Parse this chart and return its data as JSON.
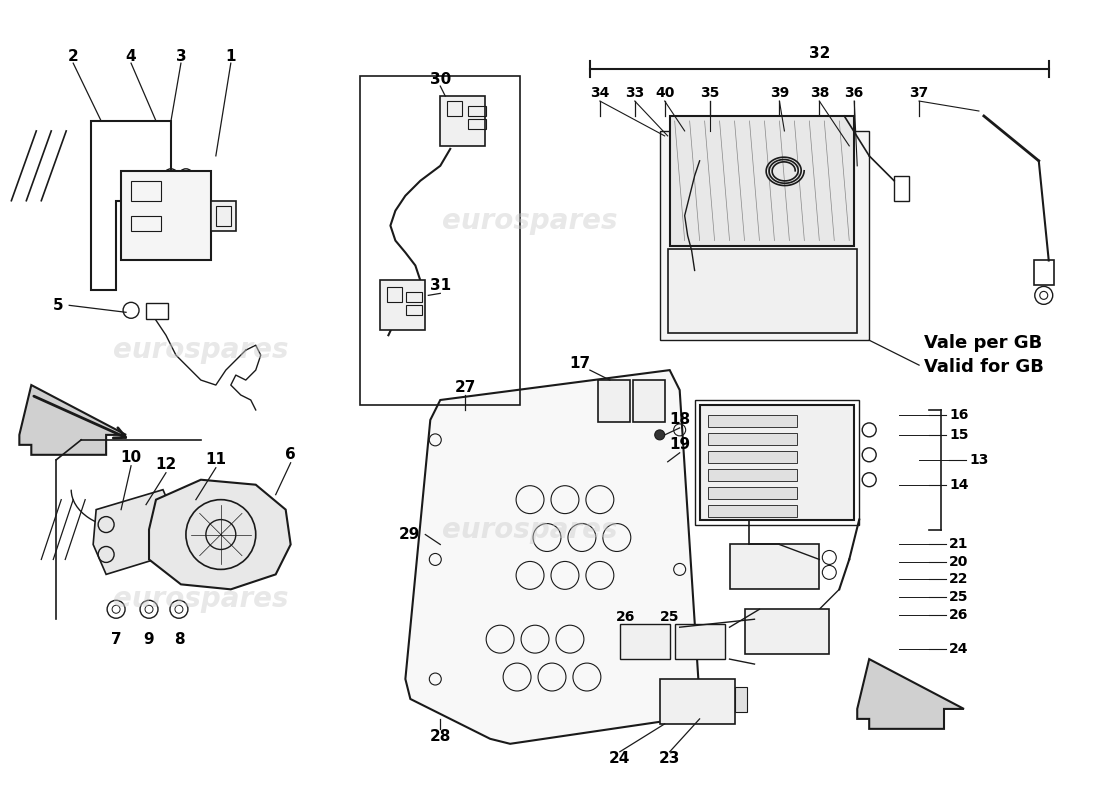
{
  "background_color": "#ffffff",
  "line_color": "#1a1a1a",
  "text_color": "#000000",
  "watermark_color": "#cccccc",
  "watermark_text": "eurospares",
  "fig_width": 11.0,
  "fig_height": 8.0,
  "dpi": 100,
  "valid_for_gb": "Vale per GB\nValid for GB"
}
